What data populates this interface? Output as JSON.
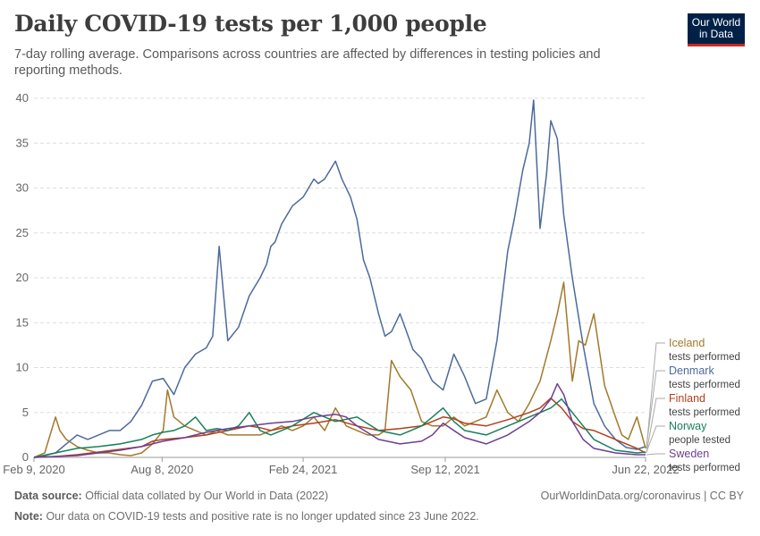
{
  "header": {
    "title": "Daily COVID-19 tests per 1,000 people",
    "subtitle": "7-day rolling average. Comparisons across countries are affected by differences in testing policies and reporting methods."
  },
  "logo": {
    "line1": "Our World",
    "line2": "in Data",
    "bg": "#002147",
    "accent": "#ce261e"
  },
  "footer": {
    "source_label": "Data source:",
    "source_text": "Official data collated by Our World in Data (2022)",
    "credit": "OurWorldinData.org/coronavirus | CC BY",
    "note_label": "Note:",
    "note_text": "Our data on COVID-19 tests and positive rate is no longer updated since 23 June 2022."
  },
  "chart_data": {
    "type": "line",
    "title": "Daily COVID-19 tests per 1,000 people",
    "xlabel": "",
    "ylabel": "",
    "ylim": [
      0,
      40
    ],
    "yticks": [
      0,
      5,
      10,
      15,
      20,
      25,
      30,
      35,
      40
    ],
    "xlim": [
      "2020-02-09",
      "2022-06-22"
    ],
    "xtick_labels": [
      "Feb 9, 2020",
      "Aug 8, 2020",
      "Feb 24, 2021",
      "Sep 12, 2021",
      "Jun 22, 2022"
    ],
    "x_unit": "months since Feb 9, 2020",
    "xtick_months": [
      0,
      5.95,
      12.5,
      19.1,
      28.4
    ],
    "xmax_months": 28.4,
    "grid": "horizontal dashed",
    "series": [
      {
        "name": "Denmark",
        "sub": "tests performed",
        "color": "#4c6a9c",
        "x": [
          0,
          0.5,
          1,
          1.5,
          2,
          2.5,
          3,
          3.5,
          4,
          4.5,
          5,
          5.5,
          6,
          6.5,
          7,
          7.5,
          8,
          8.3,
          8.6,
          9,
          9.5,
          10,
          10.5,
          10.8,
          11,
          11.2,
          11.5,
          12,
          12.5,
          13,
          13.2,
          13.5,
          14,
          14.3,
          14.7,
          15,
          15.3,
          15.6,
          16,
          16.3,
          16.6,
          17,
          17.3,
          17.6,
          18,
          18.5,
          19,
          19.5,
          20,
          20.5,
          21,
          21.5,
          22,
          22.3,
          22.7,
          23,
          23.2,
          23.5,
          23.8,
          24,
          24.3,
          24.6,
          25,
          25.5,
          26,
          26.5,
          27,
          27.5,
          28,
          28.4
        ],
        "y": [
          0,
          0.2,
          0.5,
          1.5,
          2.5,
          2,
          2.5,
          3,
          3,
          4,
          5.8,
          8.5,
          8.8,
          7,
          10,
          11.5,
          12.2,
          13.5,
          23.5,
          13,
          14.5,
          18,
          20,
          21.5,
          23.5,
          24,
          26,
          28,
          29,
          31,
          30.5,
          31,
          33,
          31,
          29,
          26.5,
          22,
          20,
          16,
          13.5,
          14,
          16,
          14,
          12,
          11,
          8.5,
          7.5,
          11.5,
          9,
          6,
          6.5,
          13,
          23,
          26.5,
          32,
          35,
          39.8,
          25.5,
          31.5,
          37.5,
          35.5,
          27,
          20,
          12.5,
          6,
          3.5,
          2,
          1.1,
          0.9,
          1.2
        ]
      },
      {
        "name": "Iceland",
        "sub": "tests performed",
        "color": "#a2792c",
        "x": [
          0,
          0.5,
          1,
          1.2,
          1.5,
          2,
          2.5,
          3,
          3.5,
          4,
          4.5,
          5,
          5.5,
          6,
          6.2,
          6.5,
          7,
          7.5,
          8,
          8.5,
          9,
          9.5,
          10,
          10.5,
          11,
          11.5,
          12,
          12.5,
          13,
          13.5,
          14,
          14.5,
          15,
          15.5,
          16,
          16.3,
          16.6,
          17,
          17.5,
          18,
          18.5,
          19,
          19.5,
          20,
          20.5,
          21,
          21.5,
          22,
          22.5,
          23,
          23.5,
          24,
          24.3,
          24.6,
          25,
          25.3,
          25.6,
          26,
          26.5,
          27,
          27.3,
          27.6,
          28,
          28.4
        ],
        "y": [
          0,
          0.5,
          4.5,
          3,
          2,
          1.2,
          0.8,
          0.5,
          0.5,
          0.3,
          0.2,
          0.5,
          1.5,
          3,
          7.5,
          4.5,
          3.5,
          3,
          2.5,
          3,
          2.5,
          2.5,
          2.5,
          2.5,
          3,
          3.5,
          3,
          3.5,
          4.5,
          3,
          5.5,
          3.5,
          3,
          2.5,
          2.5,
          3,
          10.8,
          9,
          7.5,
          4,
          3.5,
          3.5,
          4.5,
          3.5,
          4,
          4.5,
          7.5,
          5,
          4,
          6,
          8.5,
          13,
          16,
          19.5,
          8.5,
          13,
          12.5,
          16,
          8,
          4.5,
          2.5,
          2,
          4.5,
          1
        ]
      },
      {
        "name": "Finland",
        "sub": "tests performed",
        "color": "#b1401f",
        "x": [
          0,
          1,
          2,
          3,
          4,
          5,
          5.5,
          6,
          7,
          8,
          9,
          10,
          10.5,
          11,
          12,
          13,
          14,
          15,
          16,
          17,
          18,
          18.5,
          19,
          19.5,
          20,
          21,
          22,
          23,
          23.5,
          24,
          24.5,
          25,
          25.5,
          26,
          27,
          28,
          28.4
        ],
        "y": [
          0,
          0.1,
          0.3,
          0.6,
          0.9,
          1.2,
          1.8,
          2.0,
          2.2,
          2.5,
          3.0,
          3.5,
          3.3,
          3.0,
          3.5,
          3.8,
          4.2,
          3.5,
          3.0,
          3.2,
          3.5,
          4.0,
          4.5,
          4.3,
          3.8,
          3.5,
          4.2,
          5.0,
          5.5,
          6.6,
          5.5,
          4.0,
          3.2,
          3.0,
          2.0,
          1.0,
          0.5
        ]
      },
      {
        "name": "Norway",
        "sub": "people tested",
        "color": "#18805a",
        "x": [
          0,
          1,
          2,
          3,
          4,
          5,
          5.5,
          6,
          6.5,
          7,
          7.5,
          8,
          8.5,
          9,
          9.5,
          10,
          10.5,
          11,
          11.5,
          12,
          13,
          14,
          15,
          16,
          17,
          17.5,
          18,
          18.5,
          19,
          19.5,
          20,
          21,
          22,
          23,
          23.5,
          24,
          24.5,
          25,
          25.5,
          26,
          27,
          28,
          28.4
        ],
        "y": [
          0,
          0.5,
          1,
          1.2,
          1.5,
          2.0,
          2.5,
          2.8,
          3.0,
          3.5,
          4.5,
          3.0,
          3.2,
          3.0,
          3.5,
          5.0,
          3.0,
          2.5,
          3.0,
          3.5,
          5.0,
          4.0,
          4.5,
          3.0,
          2.5,
          3.0,
          3.5,
          4.5,
          5.5,
          4.0,
          3.0,
          2.5,
          3.5,
          4.5,
          5.0,
          5.5,
          6.5,
          5.0,
          3.5,
          2.0,
          0.8,
          0.5,
          0.6
        ]
      },
      {
        "name": "Sweden",
        "sub": "tests performed",
        "color": "#6d3e91",
        "x": [
          0,
          1,
          2,
          3,
          4,
          5,
          6,
          7,
          8,
          9,
          10,
          11,
          12,
          13,
          14,
          14.5,
          15,
          16,
          17,
          18,
          18.5,
          19,
          19.5,
          20,
          21,
          22,
          23,
          23.5,
          24,
          24.3,
          24.6,
          25,
          25.5,
          26,
          27,
          28,
          28.4
        ],
        "y": [
          0,
          0.1,
          0.2,
          0.5,
          0.8,
          1.2,
          1.8,
          2.2,
          2.8,
          3.2,
          3.5,
          3.8,
          4.0,
          4.5,
          4.8,
          4.5,
          3.5,
          2.0,
          1.5,
          1.8,
          2.5,
          3.8,
          3.0,
          2.2,
          1.5,
          2.5,
          4.0,
          5.0,
          6.5,
          8.2,
          7.0,
          4.0,
          2.0,
          1.0,
          0.5,
          0.3,
          0.3
        ]
      }
    ]
  }
}
